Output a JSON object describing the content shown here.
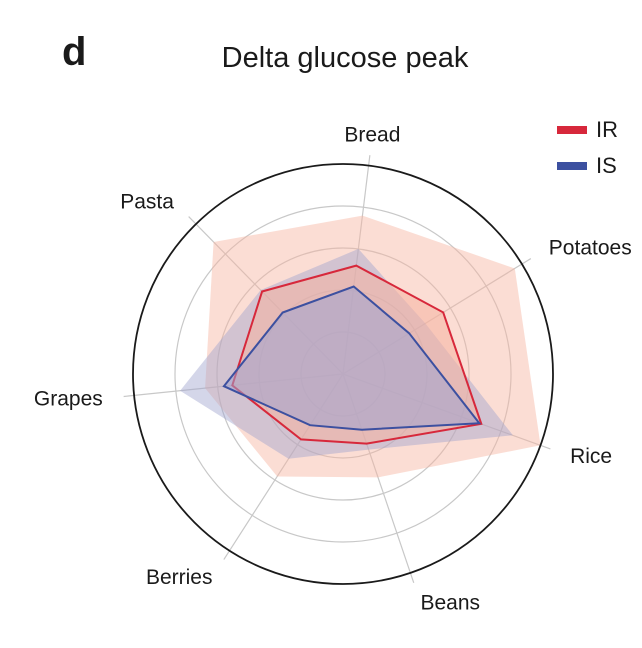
{
  "panel": {
    "letter": "d"
  },
  "chart_data": {
    "type": "radar",
    "title": "Delta glucose peak",
    "axes": [
      "Bread",
      "Potatoes",
      "Rice",
      "Beans",
      "Berries",
      "Grapes",
      "Pasta"
    ],
    "rlim": [
      0,
      5
    ],
    "grid": true,
    "legend_position": "top-right",
    "series": [
      {
        "name": "IR",
        "color": "#d7283b",
        "fill": "#f6b3a0",
        "values": [
          2.6,
          2.8,
          3.5,
          1.75,
          1.85,
          2.65,
          2.75
        ],
        "upper": [
          3.8,
          4.8,
          5.0,
          2.6,
          2.9,
          3.3,
          4.4
        ]
      },
      {
        "name": "IS",
        "color": "#3c50a0",
        "fill": "#9fa3cf",
        "values": [
          2.1,
          1.85,
          3.45,
          1.4,
          1.45,
          2.85,
          2.05
        ],
        "upper": [
          3.0,
          2.3,
          4.3,
          1.9,
          2.4,
          3.9,
          2.8
        ]
      }
    ]
  }
}
